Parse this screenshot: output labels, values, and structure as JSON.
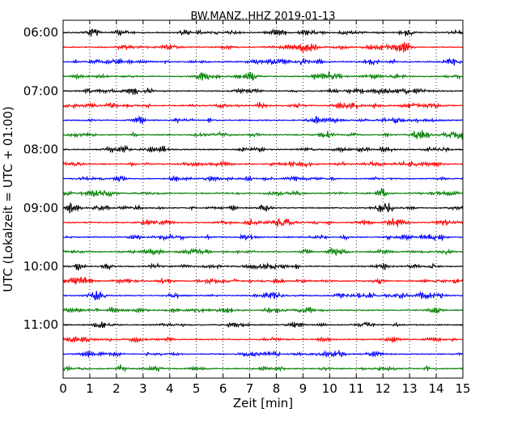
{
  "chart_data": {
    "type": "line",
    "title": "BW.MANZ..HHZ 2019-01-13",
    "xlabel": "Zeit  [min]",
    "ylabel": "UTC (Lokalzeit = UTC + 01:00)",
    "xlim": [
      0,
      15
    ],
    "x_ticks": [
      "0",
      "1",
      "2",
      "3",
      "4",
      "5",
      "6",
      "7",
      "8",
      "9",
      "10",
      "11",
      "12",
      "13",
      "14",
      "15"
    ],
    "y_ticks": [
      {
        "label": "06:00",
        "row": 0
      },
      {
        "label": "07:00",
        "row": 4
      },
      {
        "label": "08:00",
        "row": 8
      },
      {
        "label": "09:00",
        "row": 12
      },
      {
        "label": "10:00",
        "row": 16
      },
      {
        "label": "11:00",
        "row": 20
      }
    ],
    "grid": "vertical dotted at each minute",
    "rows_per_hour": 4,
    "trace_colors": [
      "#000000",
      "#ff0000",
      "#0000ff",
      "#007f00"
    ],
    "series": [
      {
        "start": "06:00"
      },
      {
        "start": "06:15"
      },
      {
        "start": "06:30"
      },
      {
        "start": "06:45"
      },
      {
        "start": "07:00"
      },
      {
        "start": "07:15"
      },
      {
        "start": "07:30"
      },
      {
        "start": "07:45"
      },
      {
        "start": "08:00"
      },
      {
        "start": "08:15"
      },
      {
        "start": "08:30"
      },
      {
        "start": "08:45"
      },
      {
        "start": "09:00"
      },
      {
        "start": "09:15"
      },
      {
        "start": "09:30"
      },
      {
        "start": "09:45"
      },
      {
        "start": "10:00"
      },
      {
        "start": "10:15"
      },
      {
        "start": "10:30"
      },
      {
        "start": "10:45"
      },
      {
        "start": "11:00"
      },
      {
        "start": "11:15"
      },
      {
        "start": "11:30"
      },
      {
        "start": "11:45"
      }
    ]
  }
}
